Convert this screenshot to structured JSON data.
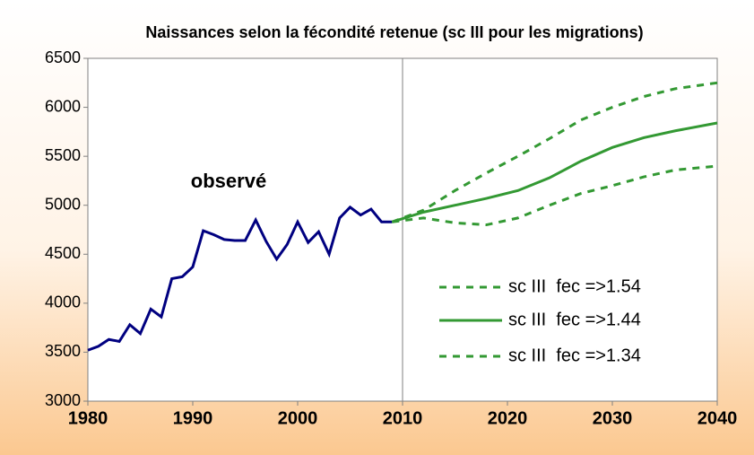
{
  "chart_data": {
    "type": "line",
    "title": "Naissances selon la fécondité retenue (sc III pour les migrations)",
    "annotation": "observé",
    "xlim": [
      1980,
      2040
    ],
    "xticks": [
      1980,
      1990,
      2000,
      2010,
      2020,
      2030,
      2040
    ],
    "ylim": [
      3000,
      6500
    ],
    "yticks": [
      3000,
      3500,
      4000,
      4500,
      5000,
      5500,
      6000,
      6500
    ],
    "vline": 2010,
    "series": [
      {
        "color": "#000080",
        "dash": false,
        "x": [
          1980,
          1981,
          1982,
          1983,
          1984,
          1985,
          1986,
          1987,
          1988,
          1989,
          1990,
          1991,
          1992,
          1993,
          1994,
          1995,
          1996,
          1997,
          1998,
          1999,
          2000,
          2001,
          2002,
          2003,
          2004,
          2005,
          2006,
          2007,
          2008,
          2009
        ],
        "values": [
          3520,
          3560,
          3630,
          3610,
          3780,
          3690,
          3940,
          3860,
          4250,
          4270,
          4370,
          4740,
          4700,
          4650,
          4640,
          4640,
          4850,
          4630,
          4450,
          4600,
          4830,
          4620,
          4730,
          4500,
          4870,
          4980,
          4900,
          4960,
          4830,
          4830
        ]
      },
      {
        "name": "sc III  fec =>1.54",
        "color": "#339933",
        "dash": true,
        "x": [
          2009,
          2012,
          2015,
          2018,
          2021,
          2024,
          2027,
          2030,
          2033,
          2036,
          2040
        ],
        "values": [
          4830,
          4950,
          5150,
          5330,
          5500,
          5680,
          5870,
          6000,
          6110,
          6190,
          6250
        ]
      },
      {
        "name": "sc III  fec =>1.44",
        "color": "#339933",
        "dash": false,
        "x": [
          2009,
          2012,
          2015,
          2018,
          2021,
          2024,
          2027,
          2030,
          2033,
          2036,
          2040
        ],
        "values": [
          4830,
          4930,
          5000,
          5070,
          5150,
          5280,
          5450,
          5590,
          5690,
          5760,
          5840
        ]
      },
      {
        "name": "sc III  fec =>1.34",
        "color": "#339933",
        "dash": true,
        "x": [
          2009,
          2012,
          2015,
          2018,
          2021,
          2024,
          2027,
          2030,
          2033,
          2036,
          2040
        ],
        "values": [
          4830,
          4870,
          4820,
          4800,
          4870,
          5000,
          5120,
          5200,
          5290,
          5360,
          5400
        ]
      }
    ]
  }
}
